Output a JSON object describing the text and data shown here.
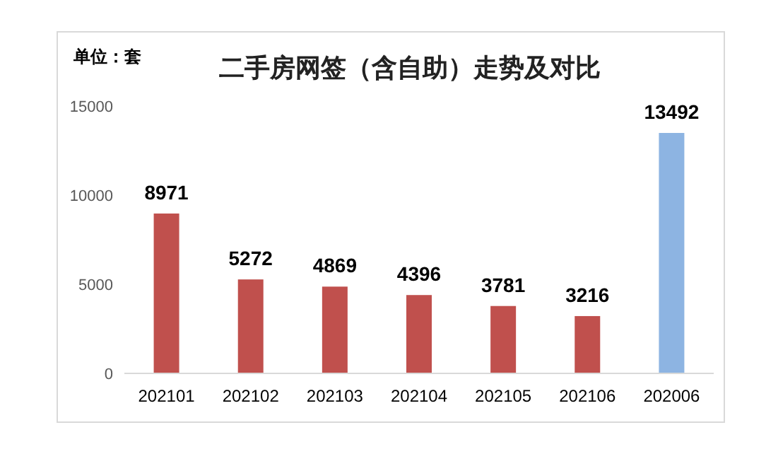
{
  "chart_data": {
    "type": "bar",
    "title": "二手房网签（含自助）走势及对比",
    "annotations": [
      "单位：套"
    ],
    "categories": [
      "202101",
      "202102",
      "202103",
      "202104",
      "202105",
      "202106",
      "202006"
    ],
    "values": [
      8971,
      5272,
      4869,
      4396,
      3781,
      3216,
      13492
    ],
    "colors": [
      "#c0504d",
      "#c0504d",
      "#c0504d",
      "#c0504d",
      "#c0504d",
      "#c0504d",
      "#8db4e2"
    ],
    "ylim": [
      0,
      15000
    ],
    "yticks": [
      0,
      5000,
      10000,
      15000
    ],
    "grid": false,
    "data_labels": true
  }
}
